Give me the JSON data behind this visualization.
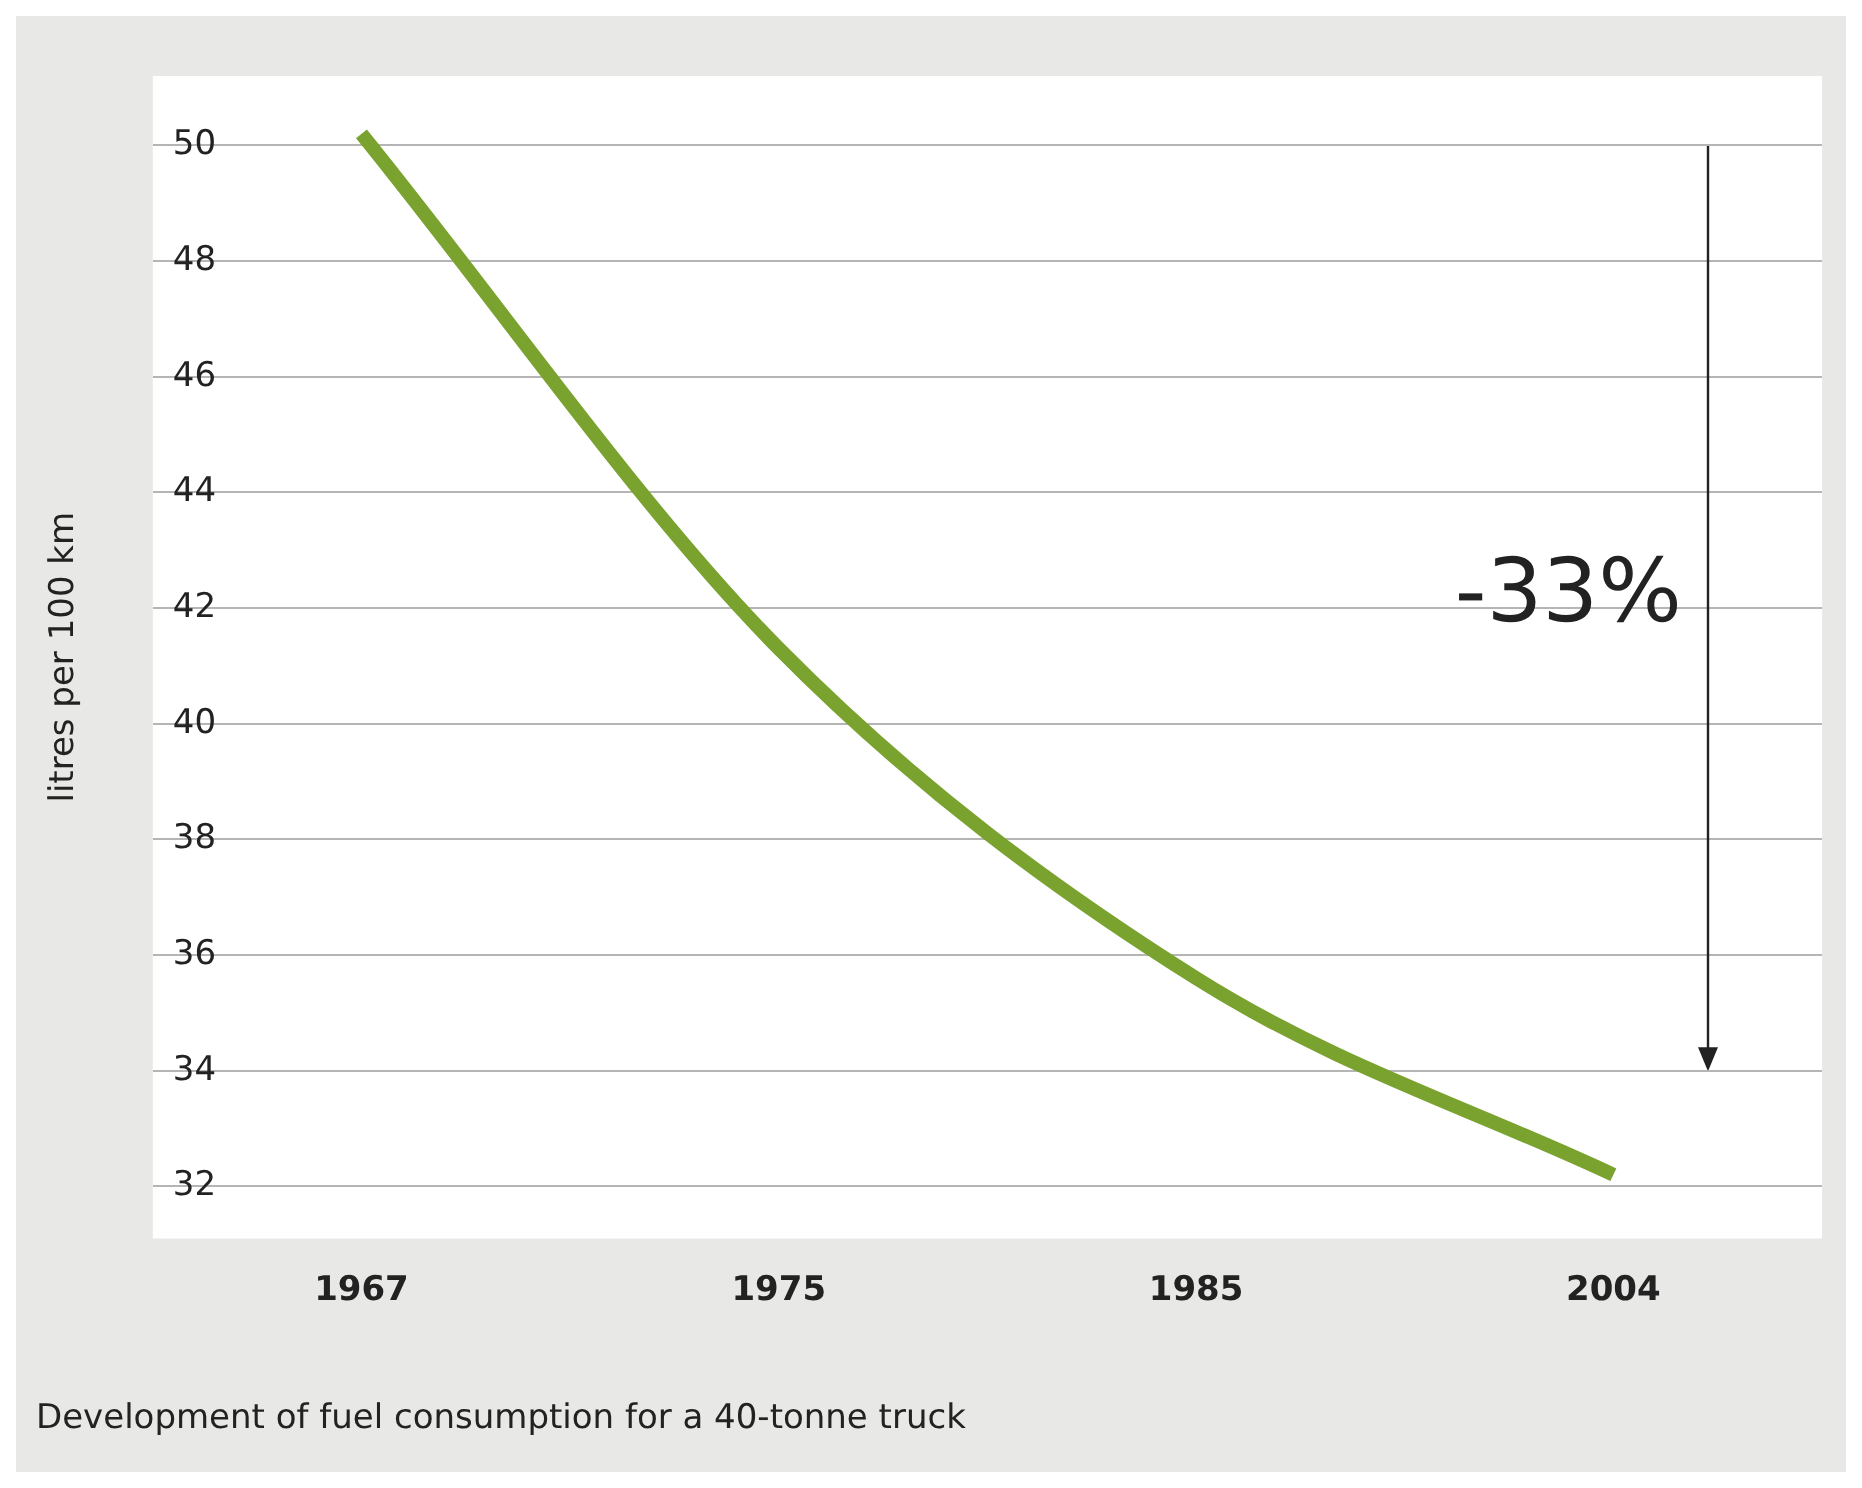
{
  "chart_data": {
    "type": "line",
    "title": "Development of fuel consumption for a 40-tonne truck",
    "ylabel": "litres per 100 km",
    "categories": [
      "1967",
      "1975",
      "1985",
      "2004"
    ],
    "series": [
      {
        "color": "#7aa22e",
        "values": [
          50.2,
          41.3,
          35.6,
          32.2
        ]
      }
    ],
    "ylim": [
      31.1,
      51.2
    ],
    "yticks": [
      32,
      34,
      36,
      38,
      40,
      42,
      44,
      46,
      48,
      50
    ],
    "grid": "y",
    "legend": false,
    "marker": "none",
    "line_style": "solid",
    "annotations": [
      "-33%"
    ]
  }
}
